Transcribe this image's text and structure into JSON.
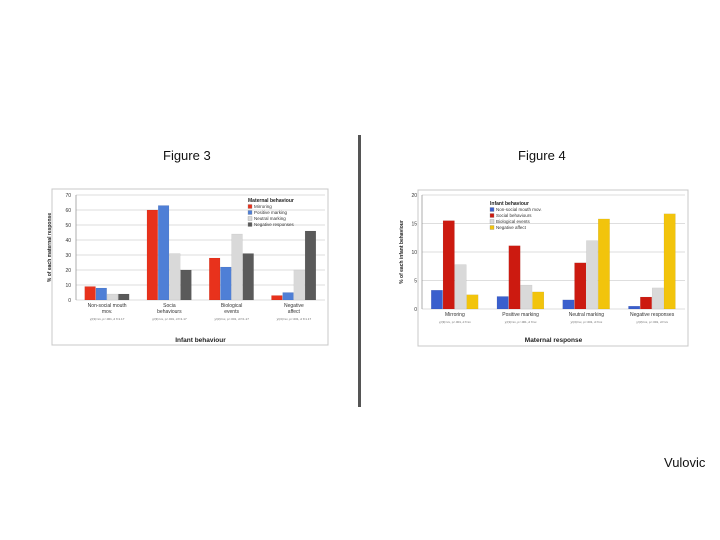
{
  "slide": {
    "fig3_title": "Figure 3",
    "fig4_title": "Figure 4",
    "author": "Vulovic"
  },
  "chart_data": [
    {
      "type": "bar",
      "ylabel": "% of each maternal response",
      "xlabel": "Infant behaviour",
      "ylim": [
        0,
        70
      ],
      "yticks": [
        0,
        10,
        20,
        30,
        40,
        50,
        60,
        70
      ],
      "grid": true,
      "legend_title": "Maternal behaviour",
      "legend_position": "top-right",
      "categories": [
        "Non-social mouth mov.",
        "Socia behaviours",
        "Biological events",
        "Negative affect"
      ],
      "footnotes": [
        "χ²(3)=xx, p<.001, d f=1.17",
        "χ²(3)=xx, p<.001, d f=1.17",
        "χ²(3)=xx, p<.001, d f=1.17",
        "χ²(3)=xx, p<.001, d f=1.17"
      ],
      "series": [
        {
          "name": "Mirroring",
          "color": "#e8321c",
          "values": [
            9,
            60,
            28,
            3
          ]
        },
        {
          "name": "Positive marking",
          "color": "#4f7fd6",
          "values": [
            8,
            63,
            22,
            5
          ]
        },
        {
          "name": "Neutral marking",
          "color": "#d9d9d9",
          "values": [
            4,
            31,
            44,
            20
          ]
        },
        {
          "name": "Negative responses",
          "color": "#5a5a5a",
          "values": [
            4,
            20,
            31,
            46
          ]
        }
      ]
    },
    {
      "type": "bar",
      "ylabel": "% of each infant behaviour",
      "xlabel": "Maternal response",
      "ylim": [
        0,
        20
      ],
      "yticks": [
        0,
        5,
        10,
        15,
        20
      ],
      "grid": true,
      "legend_title": "Infant behaviour",
      "legend_position": "top-left",
      "categories": [
        "Mirroring",
        "Positive marking",
        "Neutral marking",
        "Negative responses"
      ],
      "footnotes": [
        "χ²(3)=xx, p<.001, d f=xx",
        "χ²(3)=xx, p<.001, d f=xx",
        "χ²(3)=xx, p<.001, d f=xx",
        "χ²(3)=xx, p<.001, d f=xx"
      ],
      "series": [
        {
          "name": "Non-social mouth mov.",
          "color": "#3a5fcd",
          "values": [
            3.3,
            2.2,
            1.6,
            0.5
          ]
        },
        {
          "name": "Social behaviours",
          "color": "#cc1a10",
          "values": [
            15.5,
            11.1,
            8.1,
            2.1
          ]
        },
        {
          "name": "Biological events",
          "color": "#d9d9d9",
          "values": [
            7.8,
            4.2,
            12.0,
            3.7
          ]
        },
        {
          "name": "Negative affect",
          "color": "#f2c40c",
          "values": [
            2.5,
            3.0,
            15.8,
            16.7
          ]
        }
      ]
    }
  ]
}
